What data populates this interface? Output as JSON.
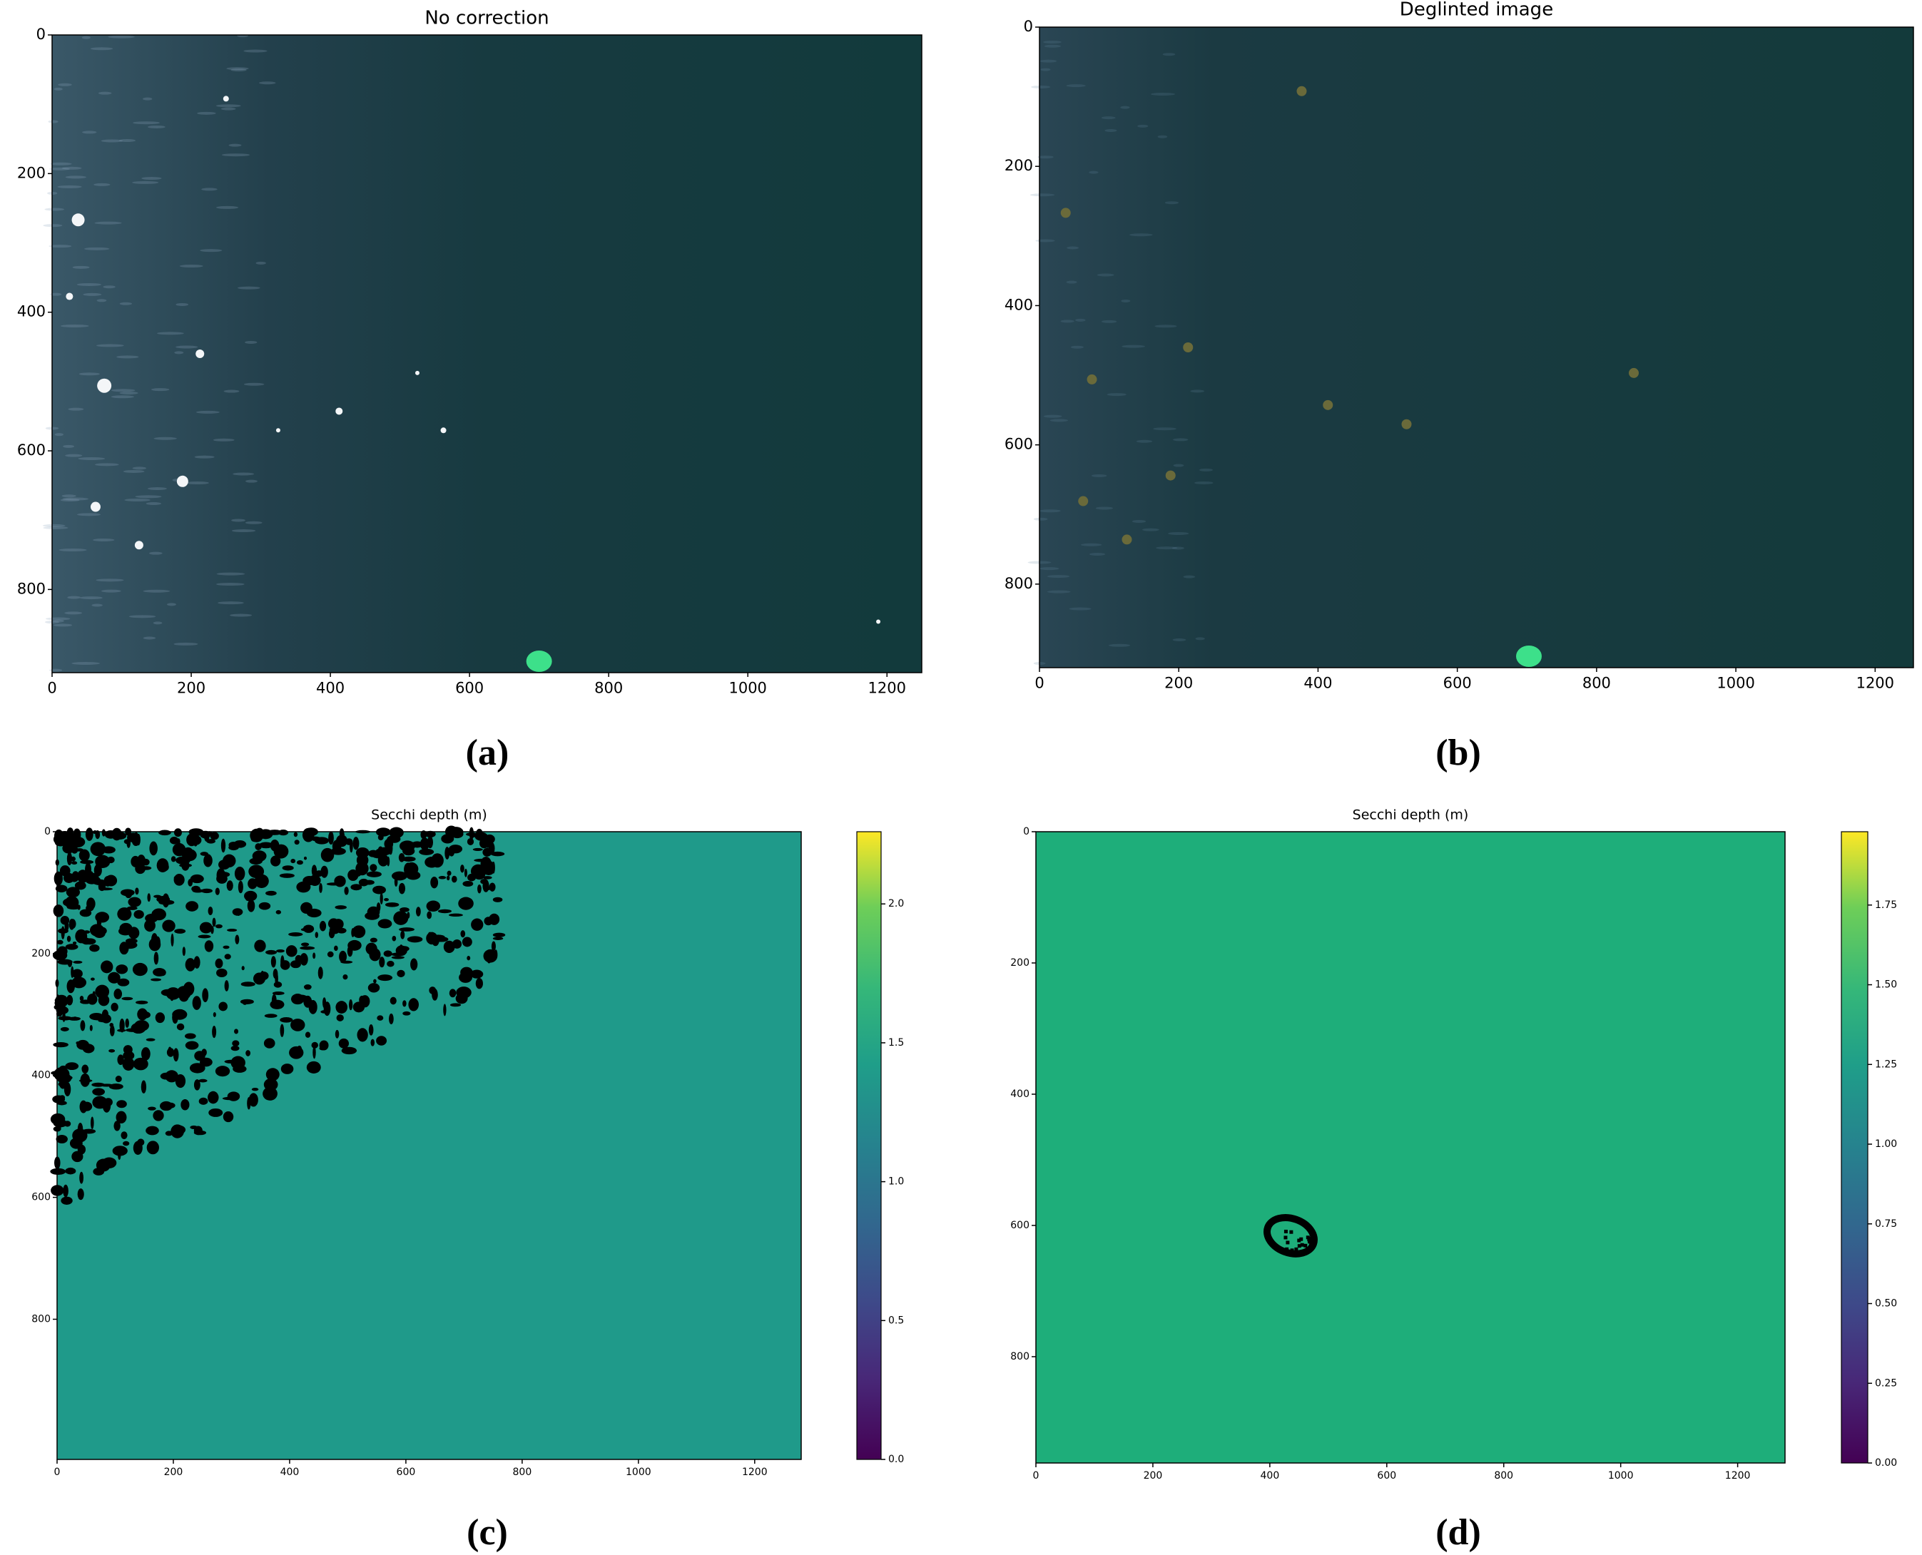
{
  "chart_data": [
    {
      "type": "image",
      "title": "No correction",
      "panel_label": "(a)",
      "xlim": [
        0,
        1250
      ],
      "ylim": [
        0,
        920
      ],
      "y_inverted": true,
      "xticks": [
        0,
        200,
        400,
        600,
        800,
        1000,
        1200
      ],
      "yticks": [
        0,
        200,
        400,
        600,
        800
      ]
    },
    {
      "type": "image",
      "title": "Deglinted image",
      "panel_label": "(b)",
      "xlim": [
        0,
        1255
      ],
      "ylim": [
        0,
        920
      ],
      "y_inverted": true,
      "xticks": [
        0,
        200,
        400,
        600,
        800,
        1000,
        1200
      ],
      "yticks": [
        0,
        200,
        400,
        600,
        800
      ]
    },
    {
      "type": "image",
      "title": "Secchi depth (m)",
      "panel_label": "(c)",
      "xlim": [
        0,
        1280
      ],
      "ylim": [
        0,
        1030
      ],
      "y_inverted": true,
      "xticks": [
        0,
        200,
        400,
        600,
        800,
        1000,
        1200
      ],
      "yticks": [
        0,
        200,
        400,
        600,
        800
      ],
      "colorbar": {
        "lim": [
          0,
          2.26
        ],
        "colormap": "viridis",
        "ticks": [
          {
            "value": 0,
            "label": "0.0"
          },
          0.5,
          {
            "value": 1,
            "label": "1.0"
          },
          1.5,
          {
            "value": 2,
            "label": "2.0"
          }
        ]
      }
    },
    {
      "type": "image",
      "title": "Secchi depth (m)",
      "panel_label": "(d)",
      "xlim": [
        0,
        1281
      ],
      "ylim": [
        0,
        962
      ],
      "y_inverted": true,
      "xticks": [
        0,
        200,
        400,
        600,
        800,
        1000,
        1200
      ],
      "yticks": [
        0,
        200,
        400,
        600,
        800
      ],
      "colorbar": {
        "lim": [
          0,
          1.98
        ],
        "colormap": "viridis",
        "ticks": [
          {
            "value": 0,
            "label": "0.00"
          },
          0.25,
          {
            "value": 0.5,
            "label": "0.50"
          },
          0.75,
          {
            "value": 1,
            "label": "1.00"
          },
          1.25,
          {
            "value": 1.5,
            "label": "1.50"
          },
          1.75
        ]
      }
    }
  ]
}
